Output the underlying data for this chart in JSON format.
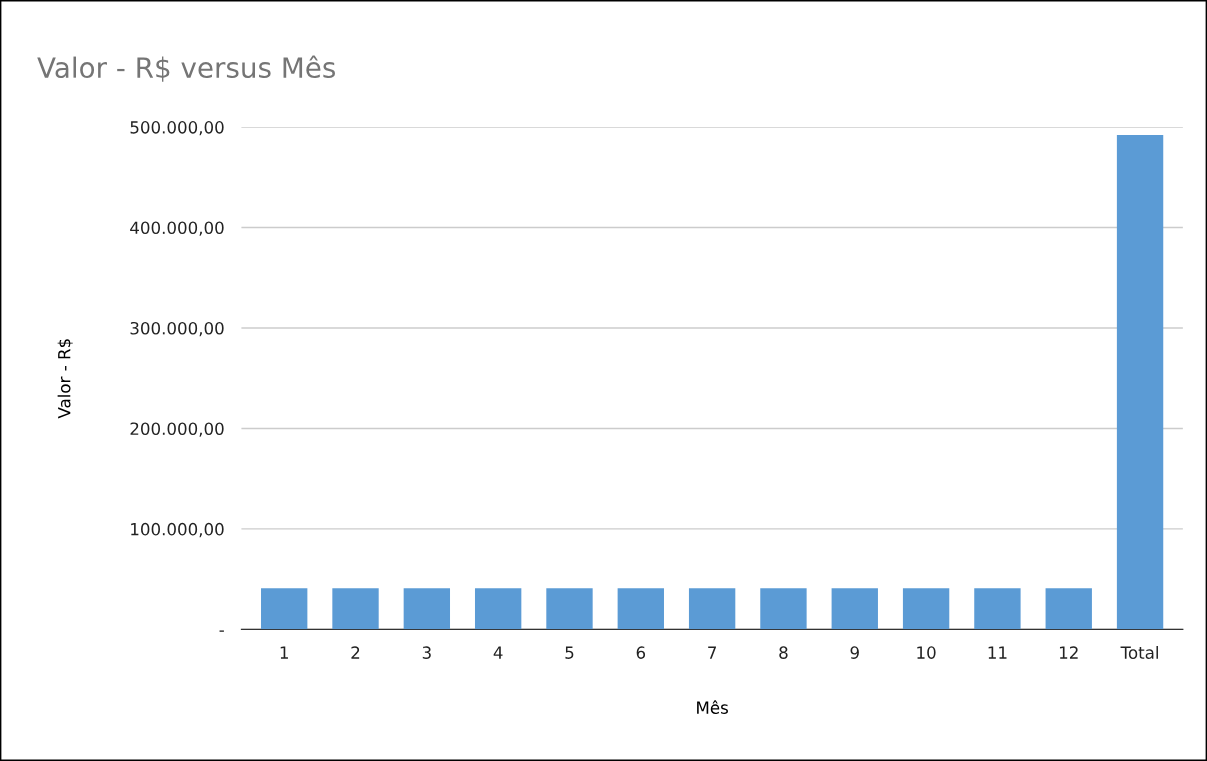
{
  "chart_data": {
    "type": "bar",
    "title": "Valor - R$ versus Mês",
    "xlabel": "Mês",
    "ylabel": "Valor - R$",
    "categories": [
      "1",
      "2",
      "3",
      "4",
      "5",
      "6",
      "7",
      "8",
      "9",
      "10",
      "11",
      "12",
      "Total"
    ],
    "values": [
      41000,
      41000,
      41000,
      41000,
      41000,
      41000,
      41000,
      41000,
      41000,
      41000,
      41000,
      41000,
      492000
    ],
    "color": "#5b9bd5",
    "ylim": [
      0,
      500000
    ],
    "yticks": [
      {
        "value": 0,
        "label": "-"
      },
      {
        "value": 100000,
        "label": "100.000,00"
      },
      {
        "value": 200000,
        "label": "200.000,00"
      },
      {
        "value": 300000,
        "label": "300.000,00"
      },
      {
        "value": 400000,
        "label": "400.000,00"
      },
      {
        "value": 500000,
        "label": "500.000,00"
      }
    ],
    "grid": "y",
    "legend": false
  }
}
